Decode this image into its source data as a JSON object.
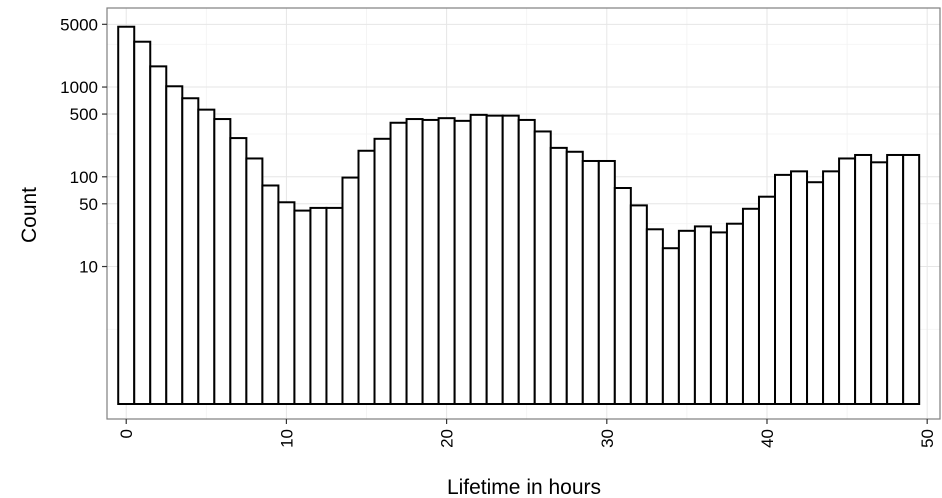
{
  "chart_data": {
    "type": "bar",
    "title": "",
    "xlabel": "Lifetime in hours",
    "ylabel": "Count",
    "x": [
      0,
      1,
      2,
      3,
      4,
      5,
      6,
      7,
      8,
      9,
      10,
      11,
      12,
      13,
      14,
      15,
      16,
      17,
      18,
      19,
      20,
      21,
      22,
      23,
      24,
      25,
      26,
      27,
      28,
      29,
      30,
      31,
      32,
      33,
      34,
      35,
      36,
      37,
      38,
      39,
      40,
      41,
      42,
      43,
      44,
      45,
      46,
      47,
      48,
      49
    ],
    "values": [
      4700,
      3200,
      1700,
      1020,
      750,
      560,
      440,
      270,
      160,
      80,
      52,
      42,
      45,
      45,
      98,
      195,
      265,
      400,
      440,
      430,
      450,
      420,
      490,
      480,
      480,
      430,
      320,
      210,
      190,
      150,
      150,
      75,
      48,
      26,
      16,
      25,
      28,
      24,
      30,
      44,
      60,
      105,
      115,
      87,
      115,
      160,
      175,
      145,
      175,
      175
    ],
    "xlim": [
      -1.2,
      50.8
    ],
    "ylim": [
      0.2,
      7600
    ],
    "y_scale": "log",
    "x_ticks": [
      0,
      10,
      20,
      30,
      40,
      50
    ],
    "x_tick_labels": [
      "0",
      "10",
      "20",
      "30",
      "40",
      "50"
    ],
    "y_ticks": [
      10,
      50,
      100,
      500,
      1000,
      5000
    ],
    "y_tick_labels": [
      "10",
      "50",
      "100",
      "500",
      "1000",
      "5000"
    ],
    "y_minor_grid": [
      2,
      30,
      300,
      3000
    ],
    "x_minor_grid": [
      5,
      15,
      25,
      35,
      45
    ],
    "grid": true,
    "legend": "none",
    "bar_fill": "#ffffff",
    "bar_stroke": "#000000"
  }
}
